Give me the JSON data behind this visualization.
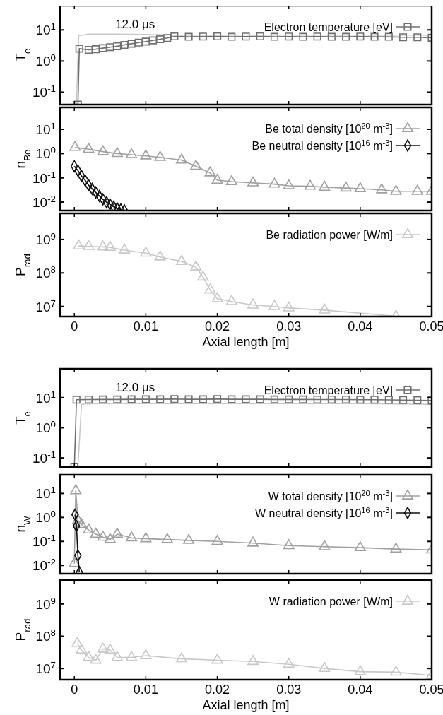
{
  "chart_data": [
    {
      "type": "line",
      "ylabel": "T$_{e}$",
      "annotations": [
        "12.0 μs"
      ],
      "log": "y",
      "legend": "top right",
      "tick_labels": "y",
      "xlim": [
        -0.002,
        0.05
      ],
      "xticks": [
        0,
        0.01,
        0.02,
        0.03,
        0.04,
        0.05
      ],
      "ylim": [
        0.04,
        60
      ],
      "yticks": [
        {
          "value": 0.1,
          "label": "10$^{-1}$"
        },
        {
          "value": 1,
          "label": "10$^{0}$"
        },
        {
          "value": 10,
          "label": "10$^{1}$"
        }
      ],
      "series": [
        {
          "color": "#c8c8c8",
          "marker": "none",
          "x": [
            0.0003,
            0.0006,
            0.002,
            0.005,
            0.008,
            0.011,
            0.014,
            0.02,
            0.03,
            0.04,
            0.05
          ],
          "values": [
            0.04,
            6.5,
            7.3,
            7.3,
            7.2,
            7.0,
            6.8,
            6.8,
            6.8,
            6.8,
            6.8
          ]
        },
        {
          "name": "Electron temperature [eV]",
          "color": "#707070",
          "marker": "square",
          "x": [
            0.0005,
            0.0007,
            0.002,
            0.003,
            0.004,
            0.005,
            0.006,
            0.007,
            0.008,
            0.009,
            0.01,
            0.011,
            0.012,
            0.013,
            0.014,
            0.016,
            0.018,
            0.02,
            0.022,
            0.024,
            0.026,
            0.028,
            0.03,
            0.032,
            0.034,
            0.036,
            0.038,
            0.04,
            0.042,
            0.044,
            0.046,
            0.048,
            0.05
          ],
          "values": [
            0.04,
            2.5,
            2.3,
            2.4,
            2.6,
            2.8,
            3.0,
            3.3,
            3.6,
            3.9,
            4.2,
            4.6,
            5.0,
            5.5,
            6.2,
            6.0,
            6.1,
            6.2,
            6.0,
            6.1,
            6.2,
            6.0,
            6.1,
            6.0,
            6.1,
            6.0,
            6.0,
            6.1,
            6.0,
            6.0,
            5.8,
            5.8,
            5.6
          ]
        }
      ]
    },
    {
      "type": "line",
      "ylabel": "n$_{Be}$",
      "log": "y",
      "legend": "top right",
      "tick_labels": "y",
      "xlim": [
        -0.002,
        0.05
      ],
      "xticks": [
        0,
        0.01,
        0.02,
        0.03,
        0.04,
        0.05
      ],
      "ylim": [
        0.0045,
        80
      ],
      "yticks": [
        {
          "value": 0.01,
          "label": "10$^{-2}$"
        },
        {
          "value": 0.1,
          "label": "10$^{-1}$"
        },
        {
          "value": 1,
          "label": "10$^{0}$"
        },
        {
          "value": 10,
          "label": "10$^{1}$"
        }
      ],
      "series": [
        {
          "name": "Be total density [10$^{20}$ m$^{-3}$]",
          "color": "#a0a0a0",
          "marker": "triangle",
          "x": [
            0.0001,
            0.002,
            0.004,
            0.006,
            0.008,
            0.01,
            0.012,
            0.015,
            0.017,
            0.019,
            0.02,
            0.022,
            0.025,
            0.028,
            0.03,
            0.033,
            0.035,
            0.038,
            0.04,
            0.043,
            0.045,
            0.048,
            0.05
          ],
          "values": [
            1.8,
            1.5,
            1.2,
            1.0,
            0.9,
            0.8,
            0.7,
            0.54,
            0.3,
            0.16,
            0.08,
            0.07,
            0.062,
            0.055,
            0.047,
            0.045,
            0.041,
            0.038,
            0.036,
            0.032,
            0.028,
            0.028,
            0.028
          ]
        },
        {
          "name": "Be neutral density [10$^{16}$ m$^{-3}$]",
          "color": "#101010",
          "marker": "diamond",
          "x": [
            0,
            0.0005,
            0.001,
            0.0015,
            0.002,
            0.0025,
            0.003,
            0.0035,
            0.004,
            0.0045,
            0.005,
            0.0055,
            0.006,
            0.0065,
            0.007
          ],
          "values": [
            0.3,
            0.2,
            0.12,
            0.08,
            0.05,
            0.035,
            0.025,
            0.018,
            0.013,
            0.01,
            0.008,
            0.0065,
            0.0055,
            0.005,
            0.0046
          ]
        }
      ]
    },
    {
      "type": "line",
      "ylabel": "P$_{rad}$",
      "xlabel": "Axial length [m]",
      "log": "y",
      "legend": "top right",
      "xlim": [
        -0.002,
        0.05
      ],
      "xticks": [
        0,
        0.01,
        0.02,
        0.03,
        0.04,
        0.05
      ],
      "ylim": [
        5000000,
        6000000000
      ],
      "yticks": [
        {
          "value": 10000000,
          "label": "10$^{7}$"
        },
        {
          "value": 100000000,
          "label": "10$^{8}$"
        },
        {
          "value": 1000000000,
          "label": "10$^{9}$"
        }
      ],
      "series": [
        {
          "name": "Be radiation power [W/m]",
          "color": "#c8c8c8",
          "marker": "triangle",
          "x": [
            0.0006,
            0.002,
            0.004,
            0.005,
            0.007,
            0.01,
            0.012,
            0.015,
            0.017,
            0.018,
            0.019,
            0.02,
            0.022,
            0.025,
            0.028,
            0.03,
            0.035,
            0.045
          ],
          "values": [
            640000000,
            620000000,
            600000000,
            580000000,
            480000000,
            390000000,
            300000000,
            220000000,
            150000000,
            75000000,
            31000000,
            17000000,
            14000000,
            11000000,
            10000000,
            9000000,
            7800000,
            5100000
          ]
        }
      ]
    },
    {
      "type": "line",
      "ylabel": "T$_{e}$",
      "annotations": [
        "12.0 μs"
      ],
      "log": "y",
      "legend": "top right",
      "tick_labels": "y",
      "xlim": [
        -0.002,
        0.05
      ],
      "xticks": [
        0,
        0.01,
        0.02,
        0.03,
        0.04,
        0.05
      ],
      "ylim": [
        0.05,
        90
      ],
      "yticks": [
        {
          "value": 0.1,
          "label": "10$^{-1}$"
        },
        {
          "value": 1,
          "label": "10$^{0}$"
        },
        {
          "value": 10,
          "label": "10$^{1}$"
        }
      ],
      "series": [
        {
          "color": "#c8c8c8",
          "marker": "none",
          "x": [
            0.0005,
            0.001,
            0.003,
            0.01,
            0.02,
            0.03,
            0.04,
            0.05
          ],
          "values": [
            0.05,
            6.0,
            6.3,
            6.3,
            6.3,
            6.3,
            6.3,
            6.0
          ]
        },
        {
          "name": "Electron temperature [eV]",
          "color": "#707070",
          "marker": "square",
          "x": [
            0,
            0.0003,
            0.002,
            0.004,
            0.006,
            0.008,
            0.01,
            0.012,
            0.014,
            0.016,
            0.018,
            0.02,
            0.022,
            0.024,
            0.026,
            0.028,
            0.03,
            0.032,
            0.034,
            0.036,
            0.038,
            0.04,
            0.042,
            0.044,
            0.046,
            0.048,
            0.05
          ],
          "values": [
            0.05,
            8.5,
            8.6,
            8.7,
            8.7,
            8.8,
            8.8,
            8.8,
            8.9,
            8.8,
            8.8,
            8.9,
            8.8,
            8.8,
            8.8,
            8.7,
            8.7,
            8.7,
            8.6,
            8.6,
            8.6,
            8.5,
            8.5,
            8.4,
            8.3,
            8.2,
            8.0
          ]
        }
      ]
    },
    {
      "type": "line",
      "ylabel": "n$_{W}$",
      "log": "y",
      "legend": "top right",
      "tick_labels": "y",
      "xlim": [
        -0.002,
        0.05
      ],
      "xticks": [
        0,
        0.01,
        0.02,
        0.03,
        0.04,
        0.05
      ],
      "ylim": [
        0.0045,
        60
      ],
      "yticks": [
        {
          "value": 0.01,
          "label": "10$^{-2}$"
        },
        {
          "value": 0.1,
          "label": "10$^{-1}$"
        },
        {
          "value": 1,
          "label": "10$^{0}$"
        },
        {
          "value": 10,
          "label": "10$^{1}$"
        }
      ],
      "series": [
        {
          "name": "W total density [10$^{20}$ m$^{-3}$]",
          "color": "#a0a0a0",
          "marker": "triangle",
          "x": [
            0,
            0.0002,
            0.0005,
            0.001,
            0.002,
            0.003,
            0.004,
            0.005,
            0.006,
            0.008,
            0.01,
            0.013,
            0.016,
            0.02,
            0.025,
            0.03,
            0.035,
            0.04,
            0.045,
            0.05
          ],
          "values": [
            0.012,
            13,
            0.76,
            0.5,
            0.3,
            0.2,
            0.15,
            0.12,
            0.2,
            0.14,
            0.13,
            0.12,
            0.11,
            0.1,
            0.085,
            0.067,
            0.06,
            0.055,
            0.048,
            0.044
          ]
        },
        {
          "name": "W neutral density [10$^{16}$ m$^{-3}$]",
          "color": "#101010",
          "marker": "diamond",
          "x": [
            0.0001,
            0.0003,
            0.0005,
            0.0007
          ],
          "values": [
            1.3,
            0.44,
            0.026,
            0.0051
          ]
        }
      ]
    },
    {
      "type": "line",
      "ylabel": "P$_{rad}$",
      "xlabel": "Axial length [m]",
      "log": "y",
      "legend": "top right",
      "xlim": [
        -0.002,
        0.05
      ],
      "xticks": [
        0,
        0.01,
        0.02,
        0.03,
        0.04,
        0.05
      ],
      "ylim": [
        4500000,
        5500000000
      ],
      "yticks": [
        {
          "value": 10000000,
          "label": "10$^{7}$"
        },
        {
          "value": 100000000,
          "label": "10$^{8}$"
        },
        {
          "value": 1000000000,
          "label": "10$^{9}$"
        }
      ],
      "series": [
        {
          "name": "W radiation power [W/m]",
          "color": "#c8c8c8",
          "marker": "triangle",
          "x": [
            0.0004,
            0.001,
            0.002,
            0.003,
            0.004,
            0.005,
            0.006,
            0.008,
            0.01,
            0.015,
            0.02,
            0.025,
            0.03,
            0.035,
            0.04,
            0.045,
            0.05
          ],
          "values": [
            60000000,
            37000000,
            22000000,
            18000000,
            40000000,
            37000000,
            22000000,
            22000000,
            25000000,
            20000000,
            18000000,
            16500000,
            13500000,
            10000000,
            8000000,
            7700000,
            6100000
          ]
        }
      ]
    }
  ]
}
